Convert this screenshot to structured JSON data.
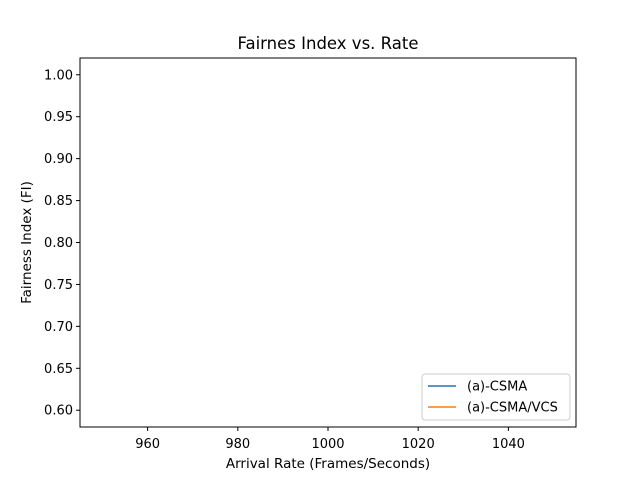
{
  "chart_data": {
    "type": "line",
    "title": "Fairnes Index vs. Rate",
    "xlabel": "Arrival Rate (Frames/Seconds)",
    "ylabel": "Fairness Index (FI)",
    "xlim": [
      945,
      1055
    ],
    "ylim": [
      0.58,
      1.02
    ],
    "xticks": [
      960,
      980,
      1000,
      1020,
      1040
    ],
    "yticks": [
      0.6,
      0.65,
      0.7,
      0.75,
      0.8,
      0.85,
      0.9,
      0.95,
      1.0
    ],
    "grid": false,
    "legend_position": "lower-right",
    "series": [
      {
        "name": "(a)-CSMA",
        "color": "#1f77b4",
        "x": [],
        "y": []
      },
      {
        "name": "(a)-CSMA/VCS",
        "color": "#ff7f0e",
        "x": [],
        "y": []
      }
    ]
  }
}
